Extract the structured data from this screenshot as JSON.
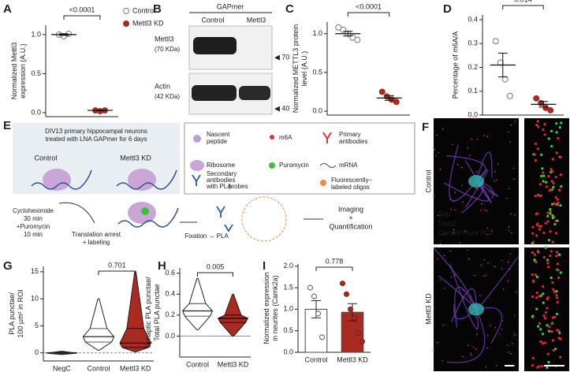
{
  "chart_data": [
    {
      "type": "dot",
      "label": "A",
      "ylabel": [
        "Normalized Mettl3",
        "expression (A.U.)"
      ],
      "ylim": [
        -0.05,
        1.12
      ],
      "yticks": [
        {
          "value": 0,
          "label": "0.0"
        },
        {
          "value": 0.5,
          "label": "0.5"
        },
        {
          "value": 1,
          "label": "1.0"
        }
      ],
      "series": [
        {
          "name": "Control",
          "color": "#ffffff",
          "values": [
            1.0,
            0.98,
            1.01
          ],
          "mean": 1.0,
          "error": 0.01
        },
        {
          "name": "Mettl3 KD",
          "color": "#a82a20",
          "values": [
            0.03,
            0.02,
            0.03
          ],
          "mean": 0.03,
          "error": 0.005
        }
      ],
      "annotation": "<0.0001",
      "legend": true
    },
    {
      "type": "dot",
      "label": "C",
      "ylabel": [
        "Normalized METTL3 protein",
        "level (A.U.)"
      ],
      "ylim": [
        -0.05,
        1.15
      ],
      "yticks": [
        {
          "value": 0,
          "label": "0.0"
        },
        {
          "value": 0.5,
          "label": "0.5"
        },
        {
          "value": 1,
          "label": "1.0"
        }
      ],
      "series": [
        {
          "color": "#ffffff",
          "values": [
            1.08,
            1.05,
            1.0,
            0.95,
            0.92
          ],
          "mean": 1.0,
          "error": 0.03
        },
        {
          "color": "#a82a20",
          "values": [
            0.25,
            0.19,
            0.15,
            0.12
          ],
          "mean": 0.17,
          "error": 0.03
        }
      ],
      "annotation": "<0.0001",
      "legend": false
    },
    {
      "type": "dot",
      "label": "D",
      "ylabel": [
        "Percentage of m6A/A"
      ],
      "ylim": [
        0,
        0.42
      ],
      "yticks": [
        {
          "value": 0,
          "label": "0.0"
        },
        {
          "value": 0.1,
          "label": "0.1"
        },
        {
          "value": 0.2,
          "label": "0.2"
        },
        {
          "value": 0.3,
          "label": "0.3"
        },
        {
          "value": 0.4,
          "label": "0.4"
        }
      ],
      "series": [
        {
          "color": "#ffffff",
          "values": [
            0.31,
            0.22,
            0.15,
            0.08
          ],
          "mean": 0.21,
          "error": 0.05
        },
        {
          "color": "#a82a20",
          "values": [
            0.07,
            0.05,
            0.03,
            0.02
          ],
          "mean": 0.045,
          "error": 0.012
        }
      ],
      "annotation": "0.014",
      "legend": false
    },
    {
      "type": "violin",
      "label": "G",
      "ylabel": [
        "PLA punctae/",
        "100 µm² in ROI"
      ],
      "categories": [
        "NegC",
        "Control",
        "Mettl3 KD"
      ],
      "colors": [
        "#333333",
        "#ffffff",
        "#a82a20"
      ],
      "ylim": [
        -1.5,
        16
      ],
      "yticks": [
        0,
        5,
        10,
        15
      ],
      "min": [
        -0.3,
        0.5,
        0.2
      ],
      "q1": [
        -0.1,
        2,
        1
      ],
      "median": [
        0,
        3,
        1.8
      ],
      "q3": [
        0.1,
        4.5,
        4.5
      ],
      "max": [
        0.3,
        10,
        15
      ],
      "annotation": "0.701"
    },
    {
      "type": "violin",
      "label": "H",
      "ylabel": [
        "Synaptic PLA punctae/",
        "Total PLA punctae"
      ],
      "categories": [
        "Control",
        "Mettl3 KD"
      ],
      "colors": [
        "#ffffff",
        "#a82a20"
      ],
      "ylim": [
        -0.2,
        0.65
      ],
      "yticks": [
        {
          "value": 0,
          "label": "0.0"
        },
        {
          "value": 0.2,
          "label": "0.2"
        },
        {
          "value": 0.4,
          "label": "0.4"
        },
        {
          "value": 0.6,
          "label": "0.6"
        }
      ],
      "min": [
        0.06,
        0.0
      ],
      "q1": [
        0.19,
        0.13
      ],
      "median": [
        0.24,
        0.17
      ],
      "q3": [
        0.31,
        0.2
      ],
      "max": [
        0.55,
        0.4
      ],
      "annotation": "0.005"
    },
    {
      "type": "bar",
      "label": "I",
      "ylabel": [
        "Normalized expression",
        "in neurites (Camk2a)"
      ],
      "categories": [
        "Control",
        "Mettl3 KD"
      ],
      "colors": [
        "#ffffff",
        "#a82a20"
      ],
      "values": [
        1.0,
        0.93
      ],
      "errors": [
        0.2,
        0.2
      ],
      "points": [
        [
          1.5,
          1.3,
          0.9,
          0.35
        ],
        [
          1.6,
          1.35,
          1.0,
          0.8,
          0.45,
          0.25
        ]
      ],
      "ylim": [
        0,
        2.05
      ],
      "yticks": [
        {
          "value": 0,
          "label": "0.0"
        },
        {
          "value": 0.5,
          "label": "0.5"
        },
        {
          "value": 1,
          "label": "1.0"
        },
        {
          "value": 1.5,
          "label": "1.5"
        },
        {
          "value": 2,
          "label": "2.0"
        }
      ],
      "annotation": "0.778"
    }
  ],
  "blot": {
    "label": "B",
    "header": "GAPmer",
    "lanes": [
      "Control",
      "Mettl3"
    ],
    "rows": [
      {
        "name": "Mettl3",
        "size": "(70 KDa)",
        "marker": "◀ 70"
      },
      {
        "name": "Actin",
        "size": "(42 KDa)",
        "marker": "◀ 40"
      }
    ]
  },
  "schematic": {
    "label": "E",
    "intro": [
      "DIV13 primary hippocampal neurons",
      "treated with LNA GAPmer for 6 days"
    ],
    "conditions": [
      "Control",
      "Mettl3 KD"
    ],
    "legend": [
      [
        "Nascent",
        "peptide"
      ],
      [
        "m6A"
      ],
      [
        "Primary",
        "antibodies"
      ],
      [
        "Ribosome"
      ],
      [
        "Puromycin"
      ],
      [
        "mRNA"
      ],
      [
        "Secondary",
        "antibodies",
        "with PLA",
        "probes"
      ],
      [
        "Fluorescently–",
        "labeled oligos"
      ]
    ],
    "treatment": [
      "Cycloheximide",
      "30 min",
      "+Puromycin",
      "10 min"
    ],
    "step1": [
      "Translation arrest",
      "+ labeling"
    ],
    "step2": "Fixation → PLA",
    "step3": [
      "Imaging",
      "+",
      "Quantification"
    ]
  },
  "images": {
    "label": "F",
    "rows": [
      "Control",
      "Mettl3 KD"
    ],
    "channels": [
      "Syp",
      "Map2",
      "CamkII-Puro PLA"
    ]
  }
}
